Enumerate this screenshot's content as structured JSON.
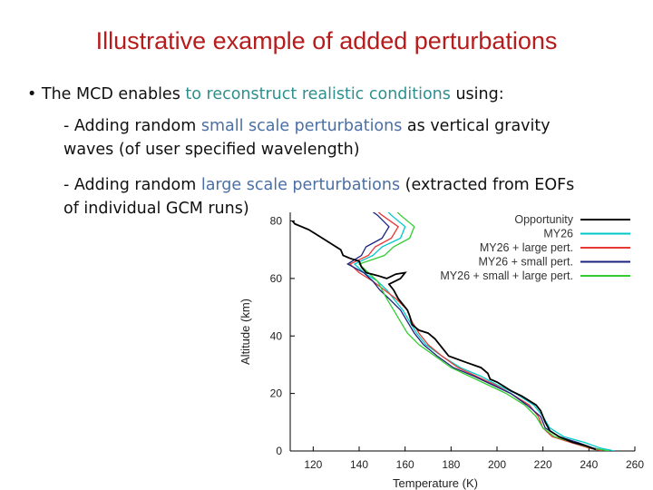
{
  "slide": {
    "title": "Illustrative example of added perturbations",
    "bullet": {
      "marker": "•",
      "pre": "The MCD enables ",
      "highlight": "to reconstruct realistic conditions",
      "post": " using:"
    },
    "item1": {
      "pre": "- Adding random ",
      "highlight": "small scale perturbations",
      "post": "  as vertical gravity",
      "line2": "waves (of user specified wavelength)"
    },
    "item2": {
      "pre": "- Adding random ",
      "highlight": "large scale perturbations",
      "post": " (extracted from EOFs",
      "line2": "of individual GCM runs)"
    }
  },
  "colors": {
    "title": "#b71c1c",
    "highlight": "#4a6fa5",
    "highlight_alt": "#2f8f8f"
  },
  "chart_data": {
    "type": "line",
    "xlabel": "Temperature (K)",
    "ylabel": "Altitude (km)",
    "xlim": [
      110,
      260
    ],
    "ylim": [
      0,
      83
    ],
    "xticks": [
      120,
      140,
      160,
      180,
      200,
      220,
      240,
      260
    ],
    "yticks": [
      0,
      20,
      40,
      60,
      80
    ],
    "legend_position": "top-right",
    "series": [
      {
        "name": "Opportunity",
        "color": "#000000",
        "points": [
          [
            111,
            80
          ],
          [
            112,
            79
          ],
          [
            118,
            77
          ],
          [
            124,
            74
          ],
          [
            128,
            72
          ],
          [
            132,
            70
          ],
          [
            133,
            68
          ],
          [
            136,
            67
          ],
          [
            140,
            66
          ],
          [
            141,
            64
          ],
          [
            143,
            62
          ],
          [
            148,
            61
          ],
          [
            152,
            60
          ],
          [
            156,
            61.5
          ],
          [
            160,
            62
          ],
          [
            158,
            60
          ],
          [
            153,
            58
          ],
          [
            155,
            56
          ],
          [
            157,
            53
          ],
          [
            161,
            49
          ],
          [
            162,
            47
          ],
          [
            163,
            44
          ],
          [
            166,
            42
          ],
          [
            170,
            41
          ],
          [
            173,
            39
          ],
          [
            176,
            36
          ],
          [
            179,
            33
          ],
          [
            186,
            31
          ],
          [
            193,
            29
          ],
          [
            196,
            27
          ],
          [
            197,
            25
          ],
          [
            200,
            24
          ],
          [
            206,
            21
          ],
          [
            211,
            19
          ],
          [
            217,
            16
          ],
          [
            219,
            14
          ],
          [
            221,
            10
          ],
          [
            223,
            7
          ],
          [
            227,
            5
          ],
          [
            233,
            3
          ],
          [
            238,
            2
          ],
          [
            243,
            0.5
          ]
        ]
      },
      {
        "name": "MY26",
        "color": "#00c8c8",
        "points": [
          [
            149,
            86
          ],
          [
            154,
            82
          ],
          [
            160,
            78
          ],
          [
            158,
            74
          ],
          [
            150,
            71
          ],
          [
            146,
            68
          ],
          [
            138,
            65
          ],
          [
            142,
            62
          ],
          [
            148,
            59
          ],
          [
            152,
            56
          ],
          [
            155,
            53
          ],
          [
            159,
            49
          ],
          [
            162,
            45
          ],
          [
            165,
            41
          ],
          [
            169,
            37
          ],
          [
            176,
            33
          ],
          [
            184,
            29
          ],
          [
            193,
            26
          ],
          [
            200,
            23
          ],
          [
            208,
            20
          ],
          [
            216,
            16
          ],
          [
            220,
            12
          ],
          [
            223,
            8
          ],
          [
            229,
            5
          ],
          [
            238,
            3
          ],
          [
            245,
            1
          ],
          [
            251,
            0
          ]
        ]
      },
      {
        "name": "MY26 + large pert.",
        "color": "#e53935",
        "points": [
          [
            144,
            86
          ],
          [
            150,
            82
          ],
          [
            157,
            78
          ],
          [
            154,
            74
          ],
          [
            147,
            71
          ],
          [
            144,
            68
          ],
          [
            136,
            65
          ],
          [
            140,
            62
          ],
          [
            146,
            59
          ],
          [
            151,
            56
          ],
          [
            156,
            53
          ],
          [
            161,
            49
          ],
          [
            163,
            45
          ],
          [
            166,
            41
          ],
          [
            170,
            37
          ],
          [
            176,
            33
          ],
          [
            183,
            29
          ],
          [
            191,
            26
          ],
          [
            199,
            23
          ],
          [
            206,
            20
          ],
          [
            214,
            16
          ],
          [
            218,
            12
          ],
          [
            220,
            8
          ],
          [
            224,
            5
          ],
          [
            232,
            3
          ],
          [
            240,
            1
          ],
          [
            246,
            0
          ]
        ]
      },
      {
        "name": "MY26 + small pert.",
        "color": "#1a237e",
        "points": [
          [
            141,
            86
          ],
          [
            148,
            82
          ],
          [
            153,
            78
          ],
          [
            150,
            74
          ],
          [
            143,
            71
          ],
          [
            141,
            68
          ],
          [
            135,
            65
          ],
          [
            142,
            62
          ],
          [
            146,
            59
          ],
          [
            149,
            56
          ],
          [
            153,
            53
          ],
          [
            158,
            49
          ],
          [
            161,
            45
          ],
          [
            164,
            41
          ],
          [
            168,
            37
          ],
          [
            174,
            33
          ],
          [
            181,
            29
          ],
          [
            190,
            26
          ],
          [
            198,
            23
          ],
          [
            206,
            20
          ],
          [
            213,
            16
          ],
          [
            219,
            12
          ],
          [
            221,
            8
          ],
          [
            227,
            5
          ],
          [
            235,
            3
          ],
          [
            242,
            1
          ],
          [
            248,
            0
          ]
        ]
      },
      {
        "name": "MY26 + small + large pert.",
        "color": "#33cc33",
        "points": [
          [
            153,
            86
          ],
          [
            158,
            82
          ],
          [
            164,
            78
          ],
          [
            162,
            74
          ],
          [
            155,
            71
          ],
          [
            151,
            68
          ],
          [
            140,
            65
          ],
          [
            144,
            62
          ],
          [
            148,
            59
          ],
          [
            150,
            56
          ],
          [
            152,
            53
          ],
          [
            155,
            49
          ],
          [
            158,
            45
          ],
          [
            161,
            41
          ],
          [
            166,
            37
          ],
          [
            173,
            33
          ],
          [
            180,
            29
          ],
          [
            188,
            26
          ],
          [
            196,
            23
          ],
          [
            204,
            20
          ],
          [
            212,
            16
          ],
          [
            217,
            12
          ],
          [
            220,
            8
          ],
          [
            225,
            5
          ],
          [
            233,
            3
          ],
          [
            241,
            1
          ],
          [
            249,
            0
          ]
        ]
      }
    ]
  }
}
